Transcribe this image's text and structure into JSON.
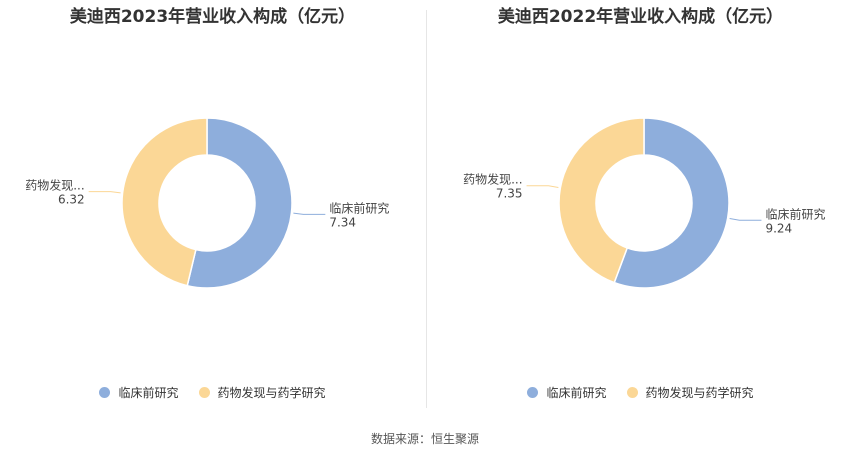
{
  "chart_data": [
    {
      "type": "pie",
      "title": "美迪西2023年营业收入构成（亿元）",
      "categories": [
        "临床前研究",
        "药物发现与药学研究"
      ],
      "values": [
        7.34,
        6.32
      ],
      "colors": [
        "#8eaedc",
        "#fbd796"
      ],
      "data_labels": [
        {
          "name": "临床前研究",
          "value": "7.34"
        },
        {
          "name": "药物发现...",
          "value": "6.32"
        }
      ],
      "legend": [
        "临床前研究",
        "药物发现与药学研究"
      ],
      "legend_position": "bottom"
    },
    {
      "type": "pie",
      "title": "美迪西2022年营业收入构成（亿元）",
      "categories": [
        "临床前研究",
        "药物发现与药学研究"
      ],
      "values": [
        9.24,
        7.35
      ],
      "colors": [
        "#8eaedc",
        "#fbd796"
      ],
      "data_labels": [
        {
          "name": "临床前研究",
          "value": "9.24"
        },
        {
          "name": "药物发现...",
          "value": "7.35"
        }
      ],
      "legend": [
        "临床前研究",
        "药物发现与药学研究"
      ],
      "legend_position": "bottom"
    }
  ],
  "source": "数据来源：恒生聚源"
}
